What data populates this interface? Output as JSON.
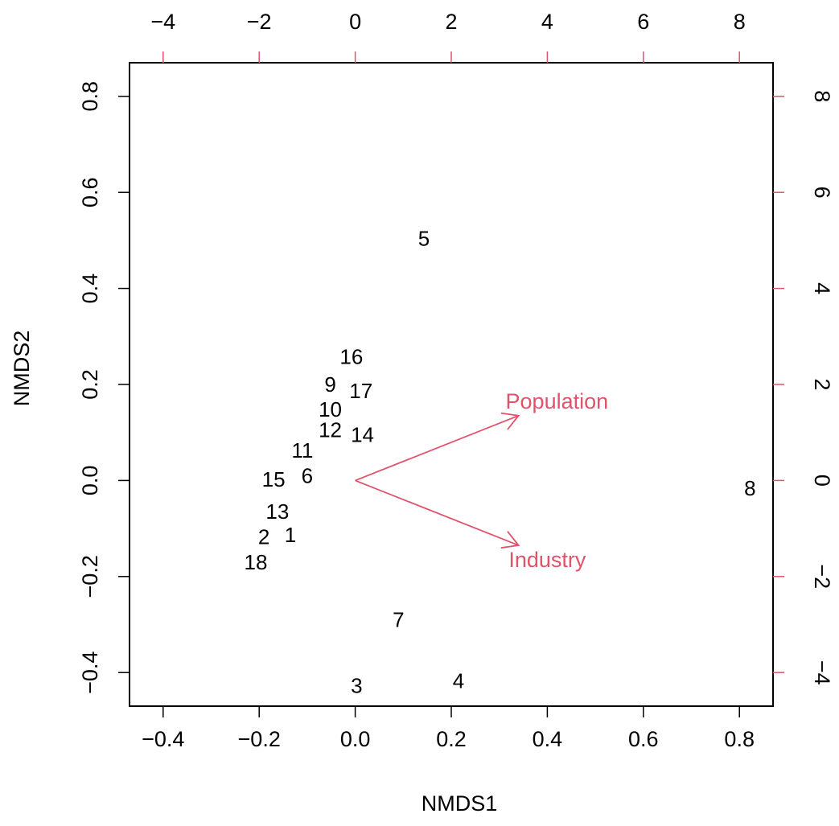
{
  "chart_data": {
    "type": "scatter",
    "title": "",
    "xlabel": "NMDS1",
    "ylabel": "NMDS2",
    "xlim": [
      -0.47,
      0.87
    ],
    "ylim": [
      -0.47,
      0.87
    ],
    "grid": false,
    "bottom_ticks": [
      "-0.4",
      "-0.2",
      "0.0",
      "0.2",
      "0.4",
      "0.6",
      "0.8"
    ],
    "left_ticks": [
      "-0.4",
      "-0.2",
      "0.0",
      "0.2",
      "0.4",
      "0.6",
      "0.8"
    ],
    "top_ticks": [
      "-4",
      "-2",
      "0",
      "2",
      "4",
      "6",
      "8"
    ],
    "right_ticks": [
      "-4",
      "-2",
      "0",
      "2",
      "4",
      "6",
      "8"
    ],
    "accent_color": "#DF536B",
    "text_color": "#000000",
    "sites": [
      {
        "label": "1",
        "x": -0.135,
        "y": -0.113
      },
      {
        "label": "2",
        "x": -0.19,
        "y": -0.117
      },
      {
        "label": "3",
        "x": 0.003,
        "y": -0.427
      },
      {
        "label": "4",
        "x": 0.215,
        "y": -0.417
      },
      {
        "label": "5",
        "x": 0.143,
        "y": 0.504
      },
      {
        "label": "6",
        "x": -0.1,
        "y": 0.01
      },
      {
        "label": "7",
        "x": 0.09,
        "y": -0.29
      },
      {
        "label": "8",
        "x": 0.822,
        "y": -0.016
      },
      {
        "label": "9",
        "x": -0.052,
        "y": 0.2
      },
      {
        "label": "10",
        "x": -0.052,
        "y": 0.148
      },
      {
        "label": "11",
        "x": -0.11,
        "y": 0.063
      },
      {
        "label": "12",
        "x": -0.052,
        "y": 0.105
      },
      {
        "label": "13",
        "x": -0.162,
        "y": -0.065
      },
      {
        "label": "14",
        "x": 0.015,
        "y": 0.095
      },
      {
        "label": "15",
        "x": -0.17,
        "y": 0.002
      },
      {
        "label": "16",
        "x": -0.008,
        "y": 0.258
      },
      {
        "label": "17",
        "x": 0.012,
        "y": 0.187
      },
      {
        "label": "18",
        "x": -0.207,
        "y": -0.17
      }
    ],
    "vectors": [
      {
        "label": "Population",
        "x": 3.4,
        "y": 1.35,
        "label_x": 4.2,
        "label_y": 1.65
      },
      {
        "label": "Industry",
        "x": 3.4,
        "y": -1.35,
        "label_x": 4.0,
        "label_y": -1.65
      }
    ]
  }
}
